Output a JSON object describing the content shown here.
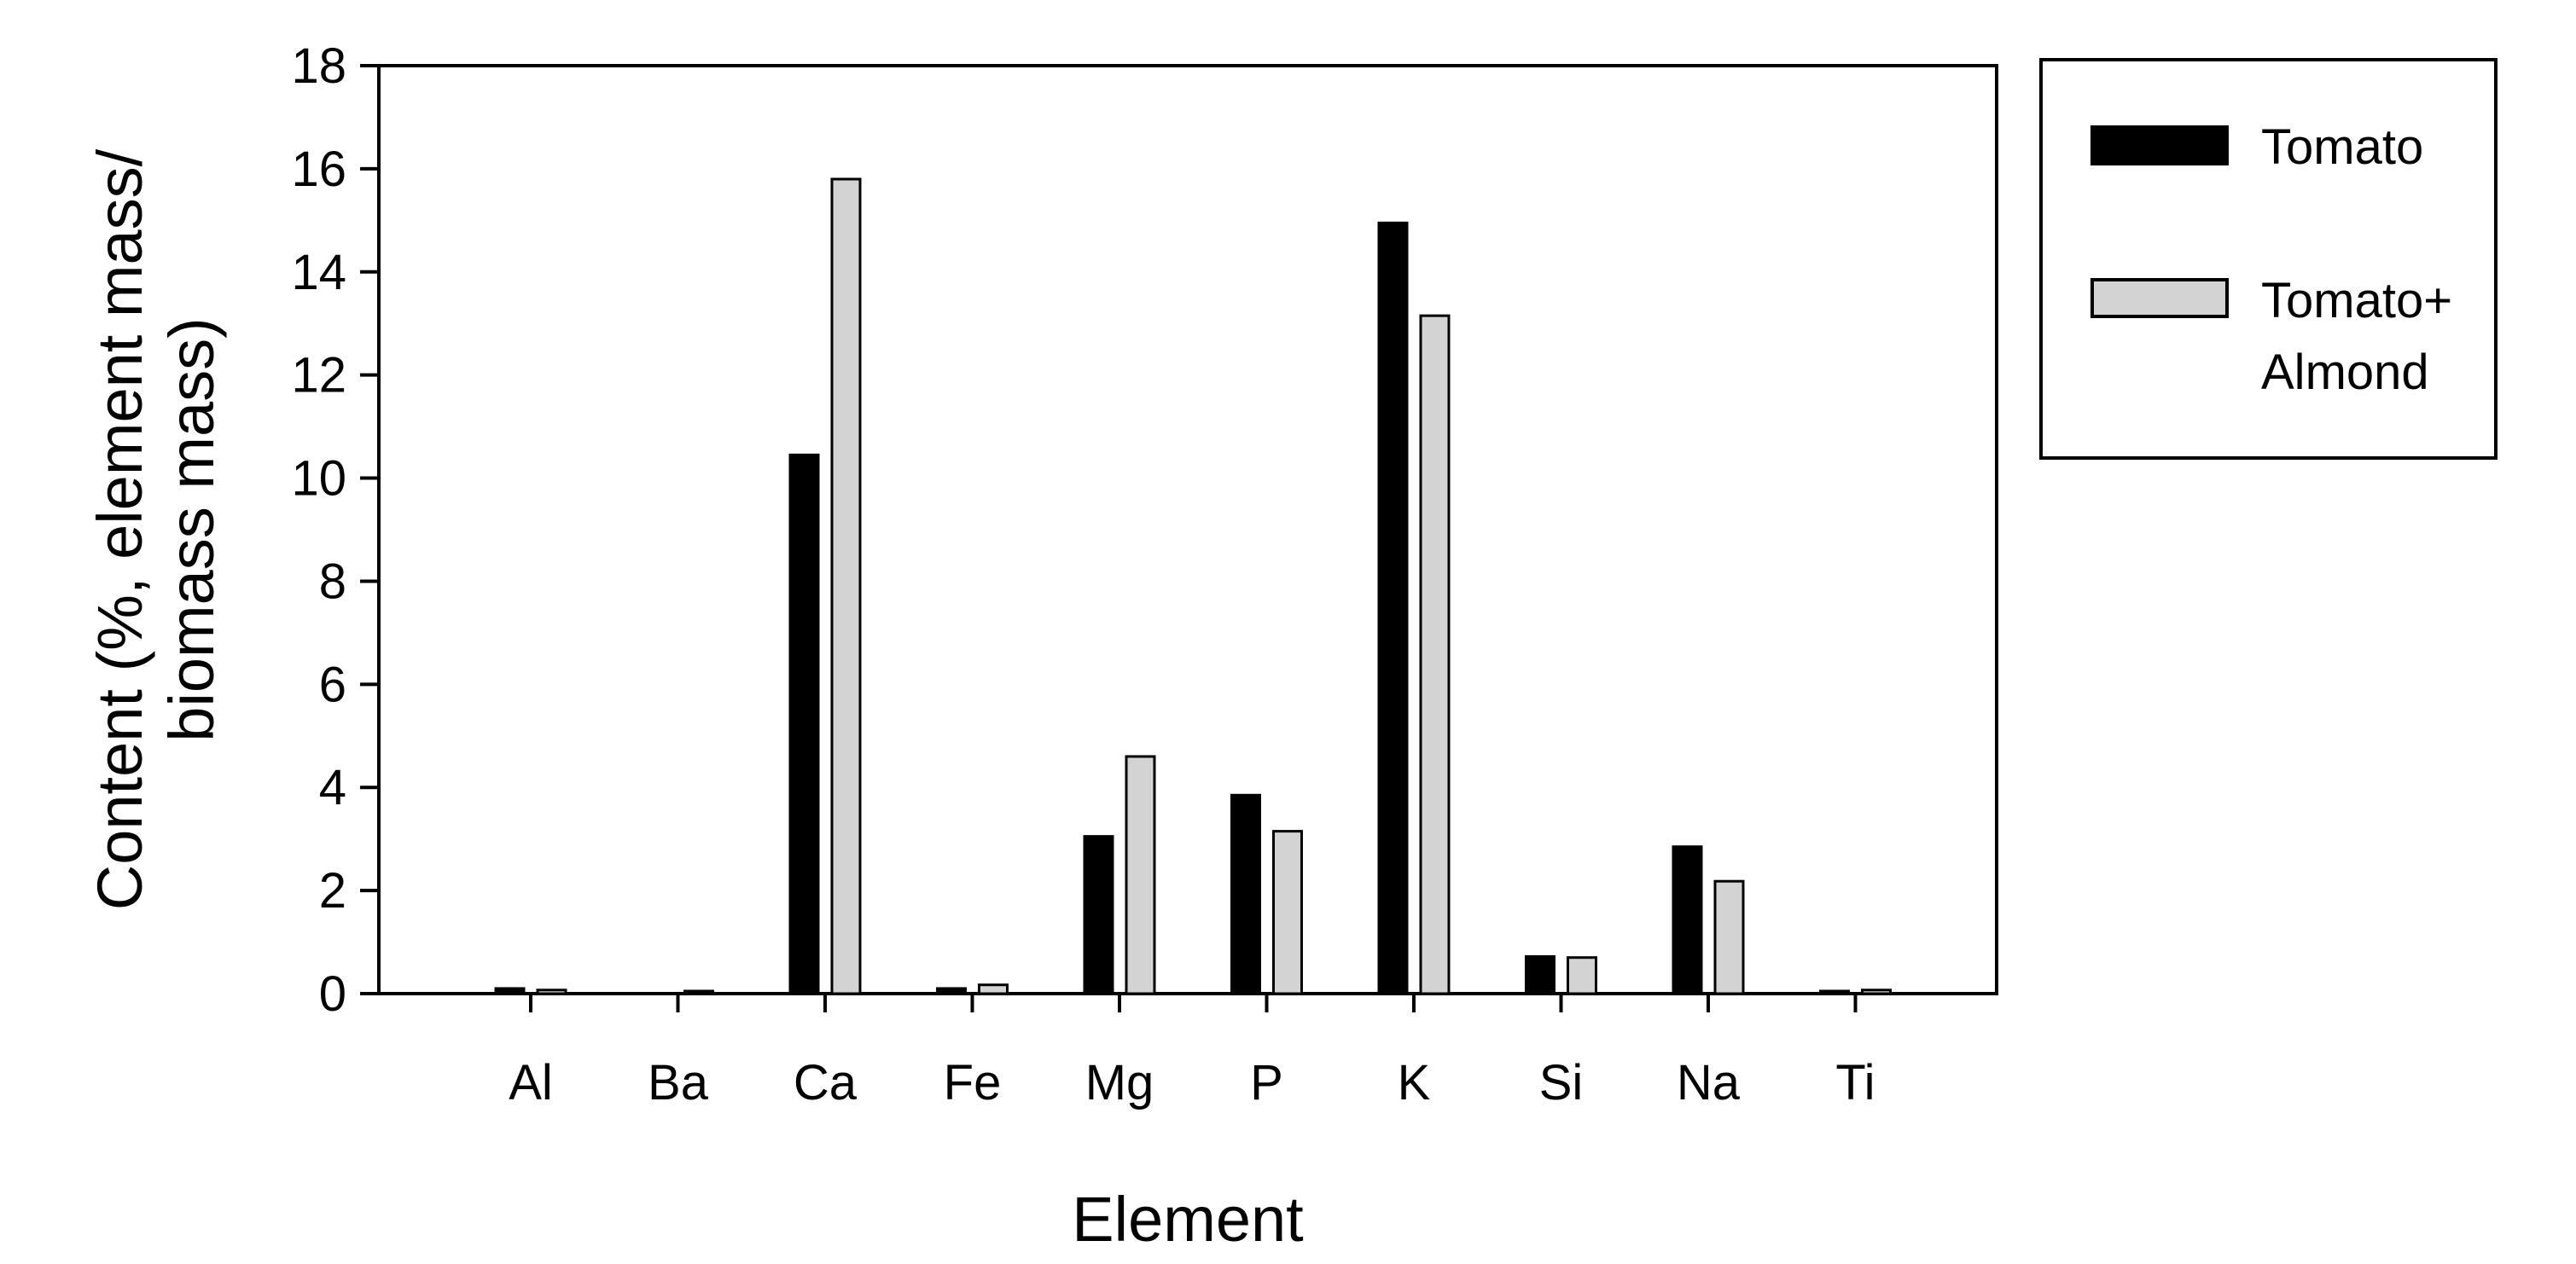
{
  "chart_data": {
    "type": "bar",
    "title": "",
    "xlabel": "Element",
    "ylabel_lines": [
      "Content (%, element mass/",
      "biomass mass)"
    ],
    "ylim": [
      0,
      18
    ],
    "yticks": [
      "0",
      "2",
      "4",
      "6",
      "8",
      "10",
      "12",
      "14",
      "16",
      "18"
    ],
    "categories": [
      "Al",
      "Ba",
      "Ca",
      "Fe",
      "Mg",
      "P",
      "K",
      "Si",
      "Na",
      "Ti"
    ],
    "series": [
      {
        "name": "Tomato",
        "color": "#000000",
        "values": [
          0.1,
          0.0,
          10.45,
          0.1,
          3.05,
          3.85,
          14.95,
          0.72,
          2.85,
          0.05
        ]
      },
      {
        "name_lines": [
          "Tomato+",
          "Almond"
        ],
        "color": "#d3d3d3",
        "values": [
          0.07,
          0.05,
          15.8,
          0.17,
          4.6,
          3.15,
          13.15,
          0.7,
          2.18,
          0.07
        ]
      }
    ],
    "legend": "right",
    "grid": false
  }
}
